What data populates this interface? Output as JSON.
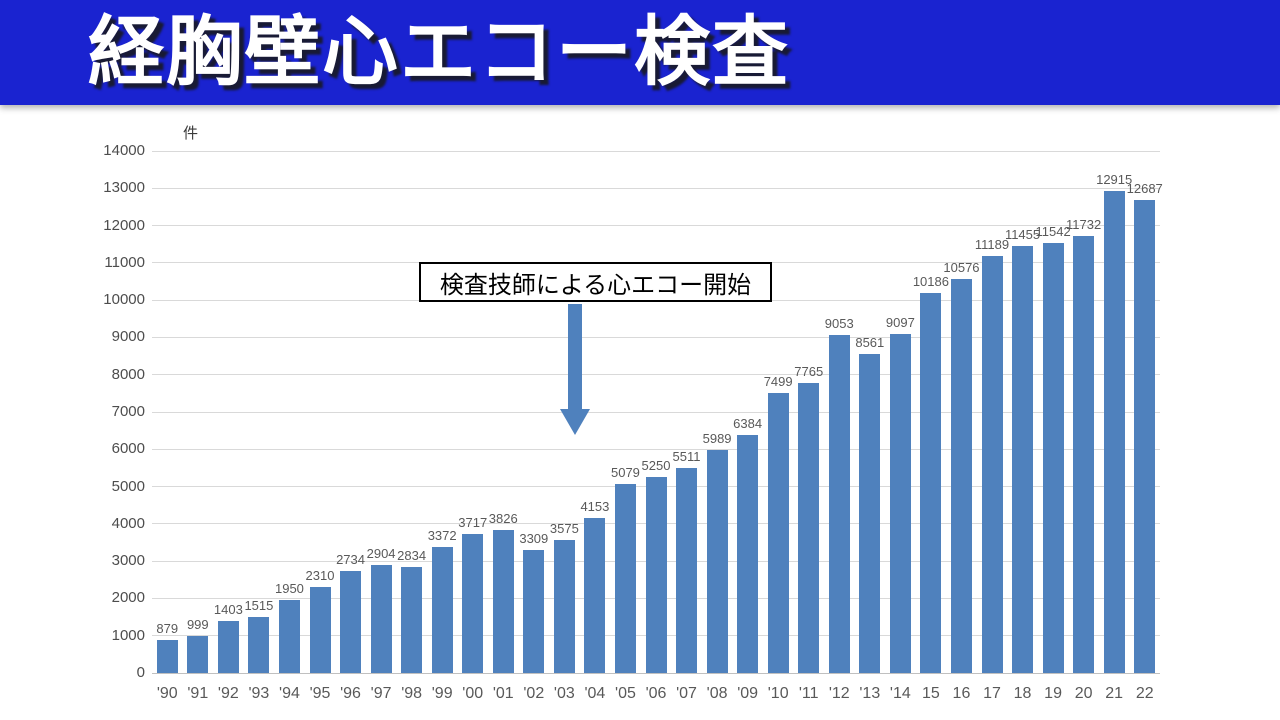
{
  "header": {
    "title": "経胸壁心エコー検査",
    "bg_color": "#1a23d0",
    "text_color": "#ffffff"
  },
  "chart_data": {
    "type": "bar",
    "title": "経胸壁心エコー検査",
    "unit_label": "件",
    "xlabel": "",
    "ylabel": "件",
    "categories": [
      "'90",
      "'91",
      "'92",
      "'93",
      "'94",
      "'95",
      "'96",
      "'97",
      "'98",
      "'99",
      "'00",
      "'01",
      "'02",
      "'03",
      "'04",
      "'05",
      "'06",
      "'07",
      "'08",
      "'09",
      "'10",
      "'11",
      "'12",
      "'13",
      "'14",
      "15",
      "16",
      "17",
      "18",
      "19",
      "20",
      "21",
      "22"
    ],
    "values": [
      879,
      999,
      1403,
      1515,
      1950,
      2310,
      2734,
      2904,
      2834,
      3372,
      3717,
      3826,
      3309,
      3575,
      4153,
      5079,
      5250,
      5511,
      5989,
      6384,
      7499,
      7765,
      9053,
      8561,
      9097,
      10186,
      10576,
      11189,
      11455,
      11542,
      11732,
      12915,
      12687
    ],
    "ylim": [
      0,
      14000
    ],
    "ytick_step": 1000,
    "grid": true,
    "legend_position": "none",
    "bar_color": "#4f81bd",
    "annotation": {
      "text": "検査技師による心エコー開始",
      "arrow_color": "#4f81bd",
      "points_between": [
        "'03",
        "'04"
      ]
    }
  }
}
